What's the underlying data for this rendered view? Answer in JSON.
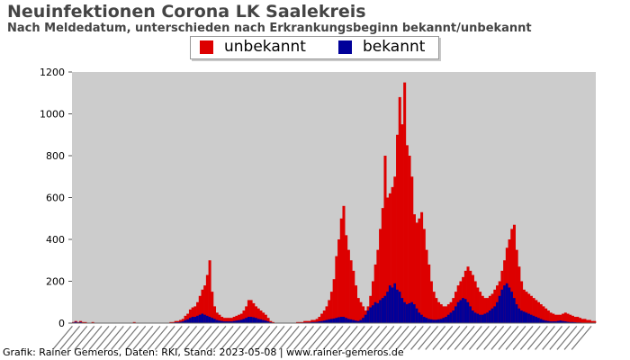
{
  "header": {
    "title": "Neuinfektionen Corona LK Saalekreis",
    "subtitle": "Nach Meldedatum, unterschieden nach Erkrankungsbeginn bekannt/unbekannt"
  },
  "footer": {
    "credit": "Grafik: Rainer Gemeros, Daten: RKI, Stand: 2023-05-08 | www.rainer-gemeros.de"
  },
  "colors": {
    "unbekannt": "#dd0000",
    "bekannt": "#000099",
    "plot_background": "#cccccc"
  },
  "chart_data": {
    "type": "bar",
    "stacked": true,
    "title": "Neuinfektionen Corona LK Saalekreis",
    "subtitle": "Nach Meldedatum, unterschieden nach Erkrankungsbeginn bekannt/unbekannt",
    "xlabel": "",
    "ylabel": "",
    "ylim": [
      0,
      1200
    ],
    "yticks": [
      0,
      200,
      400,
      600,
      800,
      1000,
      1200
    ],
    "grid": false,
    "legend_position": "top-center",
    "x_tick_labels_legible": false,
    "series": [
      {
        "name": "unbekannt",
        "color": "#dd0000",
        "values": [
          5,
          10,
          5,
          10,
          5,
          5,
          0,
          0,
          5,
          0,
          0,
          0,
          0,
          0,
          0,
          0,
          0,
          0,
          0,
          0,
          0,
          0,
          0,
          0,
          0,
          5,
          0,
          0,
          0,
          0,
          0,
          0,
          0,
          0,
          0,
          0,
          0,
          0,
          0,
          0,
          5,
          5,
          10,
          10,
          15,
          20,
          35,
          45,
          65,
          75,
          80,
          100,
          130,
          160,
          180,
          230,
          300,
          150,
          80,
          50,
          40,
          30,
          25,
          25,
          25,
          25,
          30,
          35,
          40,
          45,
          60,
          80,
          110,
          110,
          95,
          80,
          70,
          60,
          50,
          40,
          25,
          10,
          5,
          0,
          0,
          0,
          0,
          0,
          0,
          0,
          0,
          0,
          5,
          5,
          5,
          10,
          10,
          10,
          15,
          15,
          20,
          30,
          45,
          60,
          80,
          110,
          150,
          210,
          320,
          400,
          500,
          560,
          420,
          350,
          300,
          250,
          180,
          120,
          100,
          80,
          60,
          80,
          130,
          200,
          280,
          350,
          450,
          550,
          800,
          600,
          620,
          650,
          700,
          900,
          1080,
          950,
          1150,
          850,
          800,
          700,
          520,
          480,
          500,
          530,
          450,
          350,
          280,
          200,
          150,
          120,
          100,
          90,
          80,
          80,
          90,
          100,
          120,
          150,
          180,
          200,
          220,
          250,
          270,
          250,
          230,
          200,
          170,
          150,
          130,
          120,
          120,
          130,
          140,
          160,
          180,
          200,
          250,
          300,
          360,
          400,
          450,
          470,
          350,
          270,
          200,
          160,
          150,
          140,
          130,
          120,
          110,
          100,
          90,
          80,
          70,
          60,
          50,
          45,
          40,
          40,
          40,
          45,
          50,
          45,
          40,
          35,
          30,
          30,
          25,
          20,
          20,
          15,
          15,
          10,
          10
        ],
        "values_note": "approximate daily totals read off the chart (stack top)"
      },
      {
        "name": "bekannt",
        "color": "#000099",
        "values": [
          3,
          6,
          3,
          5,
          2,
          2,
          0,
          0,
          2,
          0,
          0,
          0,
          0,
          0,
          0,
          0,
          0,
          0,
          0,
          0,
          0,
          0,
          0,
          0,
          0,
          2,
          0,
          0,
          0,
          0,
          0,
          0,
          0,
          0,
          0,
          0,
          0,
          0,
          0,
          0,
          2,
          2,
          4,
          4,
          6,
          8,
          14,
          18,
          25,
          30,
          30,
          35,
          40,
          45,
          40,
          35,
          30,
          25,
          20,
          15,
          12,
          10,
          8,
          8,
          8,
          8,
          10,
          12,
          14,
          16,
          20,
          25,
          30,
          30,
          28,
          25,
          20,
          18,
          15,
          12,
          8,
          4,
          2,
          0,
          0,
          0,
          0,
          0,
          0,
          0,
          0,
          0,
          2,
          2,
          2,
          3,
          3,
          3,
          5,
          5,
          6,
          8,
          10,
          12,
          15,
          18,
          20,
          22,
          25,
          28,
          30,
          30,
          25,
          20,
          18,
          15,
          12,
          10,
          15,
          25,
          40,
          60,
          75,
          85,
          100,
          95,
          110,
          120,
          130,
          150,
          180,
          170,
          190,
          160,
          150,
          120,
          100,
          90,
          95,
          100,
          90,
          70,
          50,
          40,
          30,
          25,
          20,
          18,
          16,
          16,
          18,
          20,
          25,
          30,
          40,
          50,
          60,
          80,
          100,
          110,
          120,
          115,
          100,
          80,
          60,
          50,
          45,
          40,
          40,
          45,
          50,
          60,
          70,
          80,
          100,
          130,
          160,
          180,
          190,
          170,
          150,
          120,
          90,
          70,
          60,
          55,
          50,
          45,
          40,
          35,
          30,
          25,
          20,
          15,
          12,
          10,
          8,
          8,
          8,
          10,
          12,
          10,
          8,
          6,
          5,
          5,
          4,
          3,
          3,
          2,
          2,
          1,
          1
        ],
        "values_note": "approximate daily values of the lower stack segment"
      }
    ]
  }
}
